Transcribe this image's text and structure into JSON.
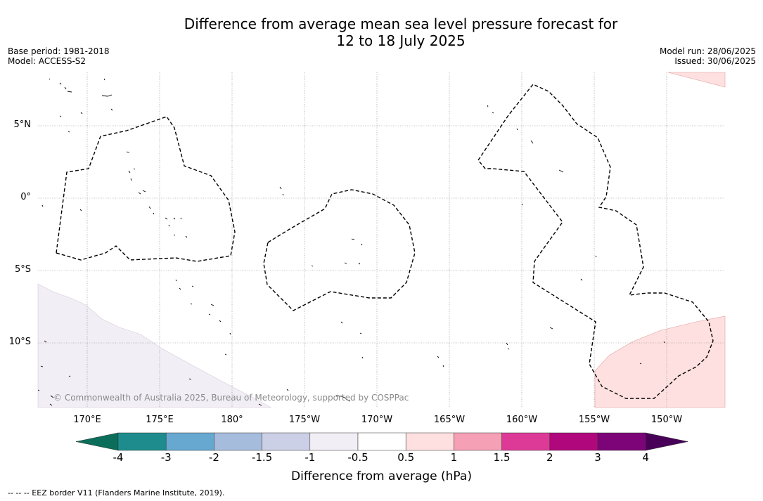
{
  "title_line1": "Difference from average mean sea level pressure forecast for",
  "title_line2": "12 to 18 July 2025",
  "info_left": {
    "base_period": "Base period: 1981-2018",
    "model": "Model: ACCESS-S2"
  },
  "info_right": {
    "model_run": "Model run: 28/06/2025",
    "issued": "Issued: 30/06/2025"
  },
  "copyright": "© Commonwealth of Australia 2025, Bureau of Meteorology, supported by COSPPac",
  "lat_ticks": [
    "5°N",
    "0°",
    "5°S",
    "10°S"
  ],
  "lon_ticks": [
    "170°E",
    "175°E",
    "180°",
    "175°W",
    "170°W",
    "165°W",
    "160°W",
    "155°W",
    "150°W"
  ],
  "colorbar": {
    "title": "Difference from average (hPa)",
    "labels": [
      "-4",
      "-3",
      "-2",
      "-1.5",
      "-1",
      "-0.5",
      "0.5",
      "1",
      "1.5",
      "2",
      "3",
      "4"
    ],
    "colors": [
      "#1e8c8c",
      "#66a8d0",
      "#a6bcdc",
      "#ccd0e6",
      "#f2eef5",
      "#ffffff",
      "#ffe0e0",
      "#f5a0b4",
      "#dc3a96",
      "#b0087c",
      "#7c0478"
    ],
    "under_color": "#0a6e5a",
    "over_color": "#480058"
  },
  "footnote": "--  --  -- EEZ border V11 (Flanders Marine Institute, 2019)."
}
